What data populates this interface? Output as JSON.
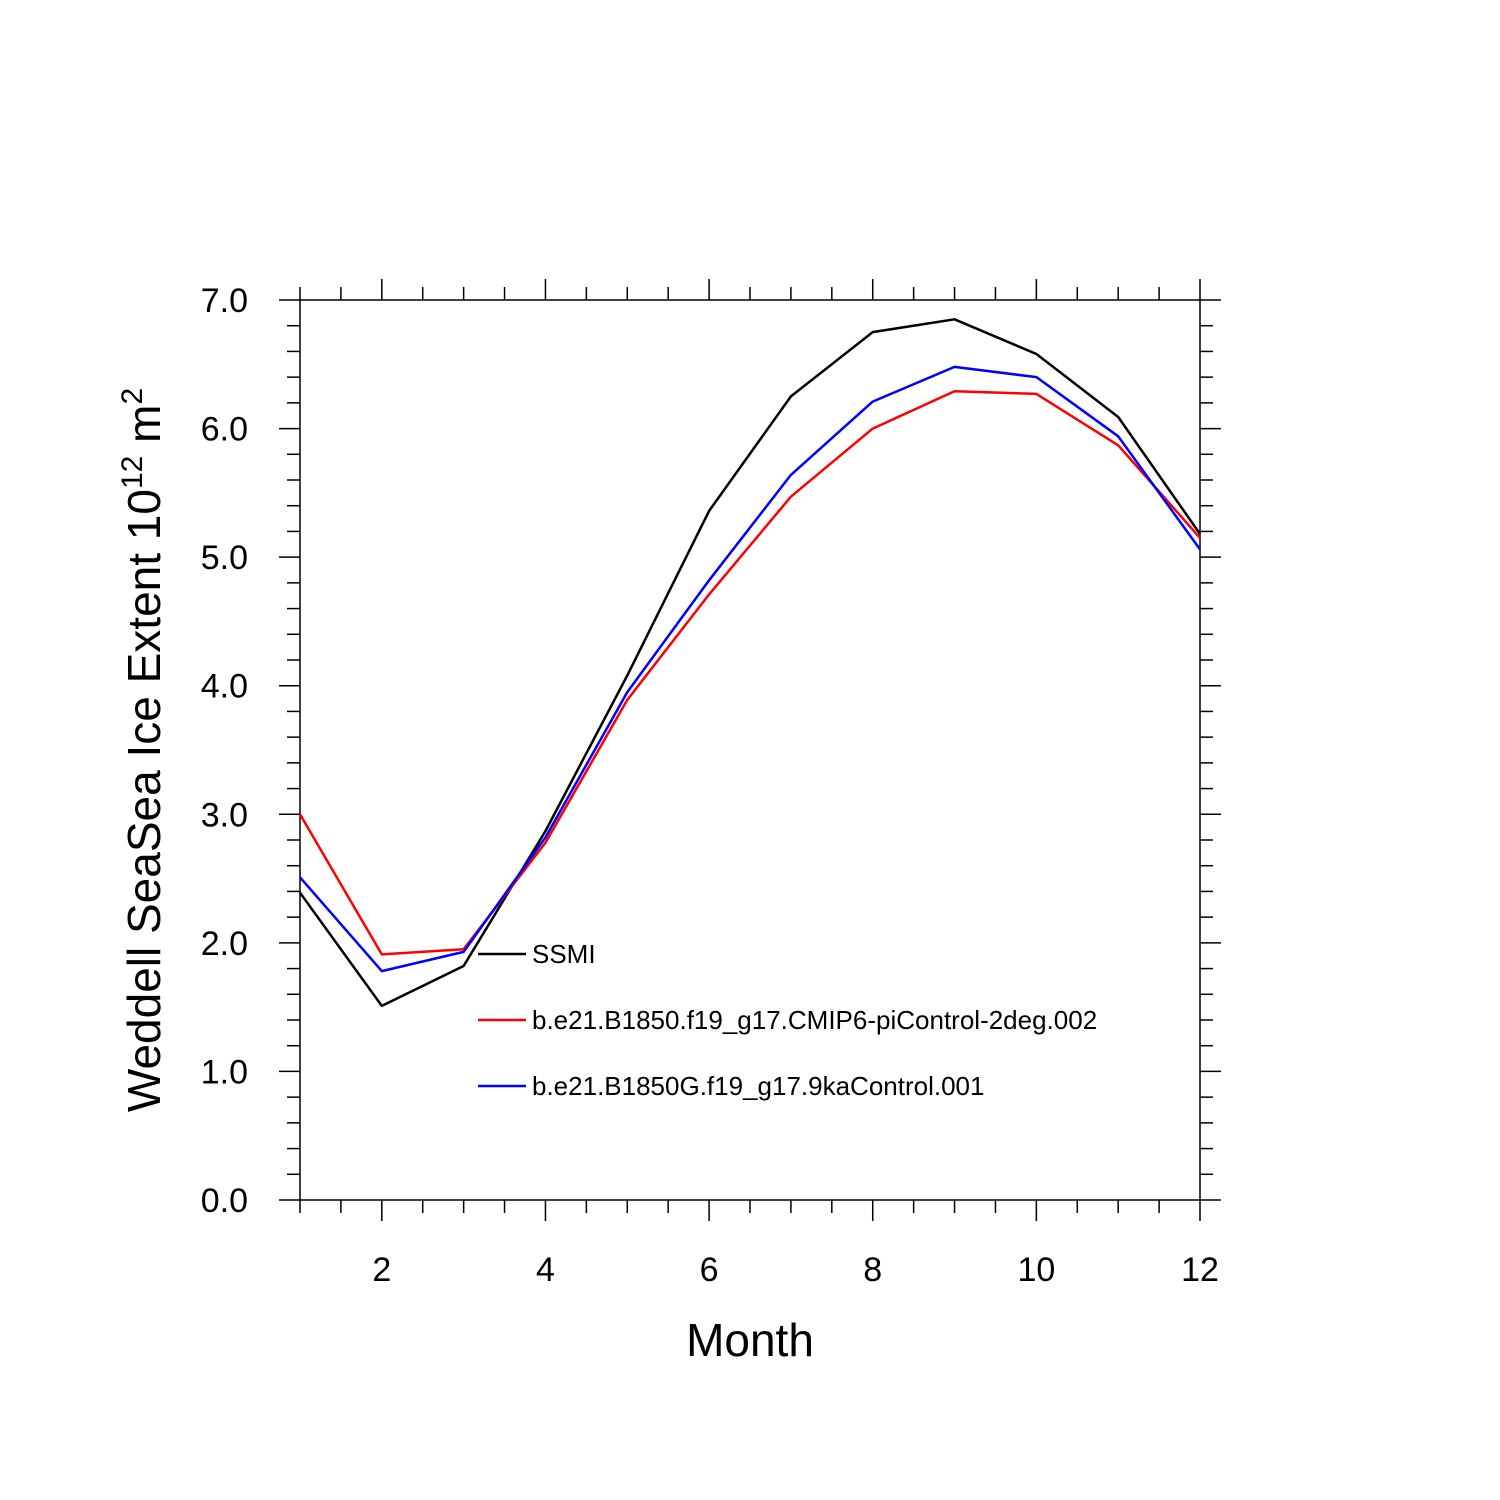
{
  "chart_data": {
    "type": "line",
    "xlabel": "Month",
    "ylabel_main": "Weddell SeaSea Ice Extent 10",
    "ylabel_exp": "12",
    "ylabel_unit": " m",
    "ylabel_unit_exp": "2",
    "xlim": [
      1,
      12
    ],
    "ylim": [
      0,
      7
    ],
    "xticks": [
      2,
      4,
      6,
      8,
      10,
      12
    ],
    "xtick_labels": [
      "2",
      "4",
      "6",
      "8",
      "10",
      "12"
    ],
    "yticks": [
      0,
      1,
      2,
      3,
      4,
      5,
      6,
      7
    ],
    "ytick_labels": [
      "0.0",
      "1.0",
      "2.0",
      "3.0",
      "4.0",
      "5.0",
      "6.0",
      "7.0"
    ],
    "x": [
      1,
      2,
      3,
      4,
      5,
      6,
      7,
      8,
      9,
      10,
      11,
      12
    ],
    "series": [
      {
        "name": "SSMI",
        "color": "#000000",
        "values": [
          2.39,
          1.51,
          1.82,
          2.87,
          4.08,
          5.36,
          6.25,
          6.75,
          6.85,
          6.58,
          6.09,
          5.18
        ]
      },
      {
        "name": "b.e21.B1850.f19_g17.CMIP6-piControl-2deg.002",
        "color": "#ff0000",
        "values": [
          3.0,
          1.91,
          1.95,
          2.78,
          3.89,
          4.71,
          5.47,
          6.0,
          6.29,
          6.27,
          5.87,
          5.15
        ]
      },
      {
        "name": "b.e21.B1850G.f19_g17.9kaControl.001",
        "color": "#0000ff",
        "values": [
          2.51,
          1.78,
          1.93,
          2.82,
          3.95,
          4.82,
          5.64,
          6.21,
          6.48,
          6.4,
          5.94,
          5.06
        ]
      }
    ],
    "legend_position": "center-right"
  }
}
